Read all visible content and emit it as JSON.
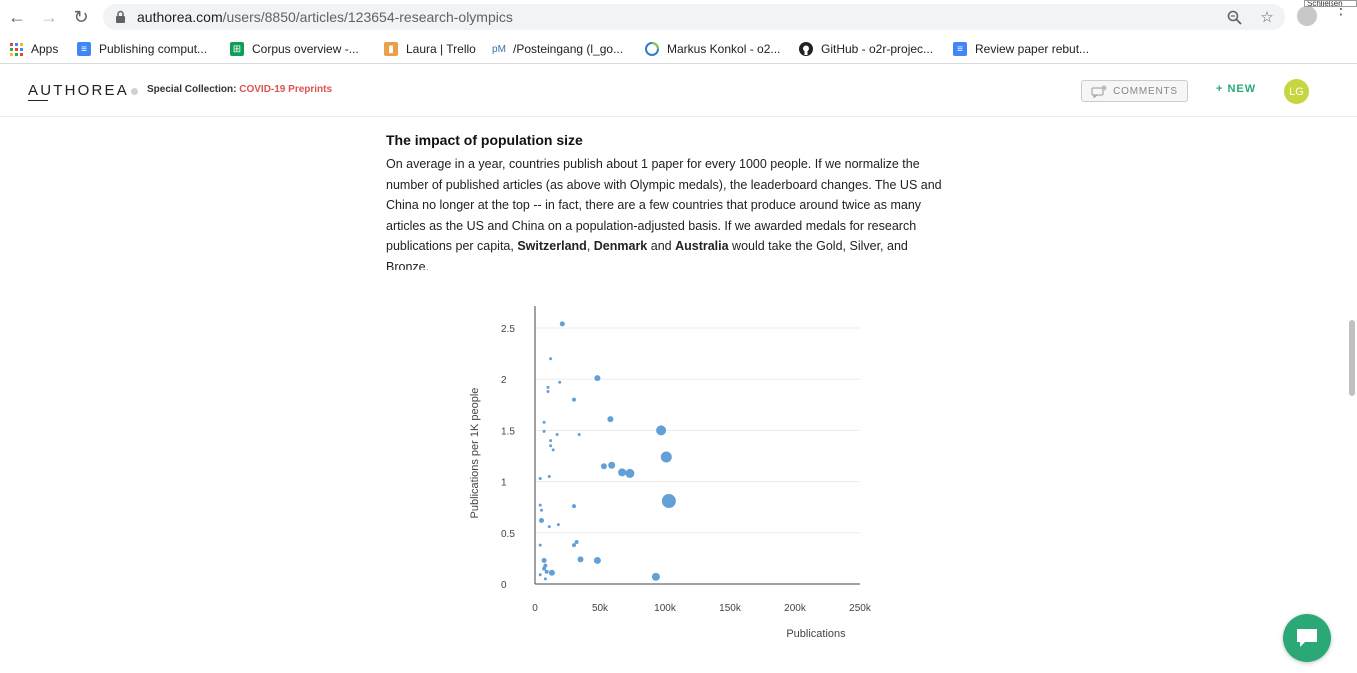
{
  "browser": {
    "url_host": "authorea.com",
    "url_path": "/users/8850/articles/123654-research-olympics",
    "tooltip_fragment": "Schließen",
    "bookmarks": [
      {
        "label": "Apps",
        "icon": "apps-grid-icon"
      },
      {
        "label": "Publishing comput...",
        "icon": "google-docs-icon"
      },
      {
        "label": "Corpus overview -...",
        "icon": "google-sheets-icon"
      },
      {
        "label": "Laura | Trello",
        "icon": "trello-icon"
      },
      {
        "label": "/Posteingang (l_go...",
        "icon": "pm-icon"
      },
      {
        "label": "Markus Konkol - o2...",
        "icon": "orcid-icon"
      },
      {
        "label": "GitHub - o2r-projec...",
        "icon": "github-icon"
      },
      {
        "label": "Review paper rebut...",
        "icon": "google-docs-icon"
      }
    ]
  },
  "header": {
    "logo": "AUTHOREA",
    "collection_prefix": "Special Collection:",
    "collection_name": "COVID-19 Preprints",
    "comments_label": "COMMENTS",
    "new_label": "+ NEW",
    "avatar_initials": "LG"
  },
  "article": {
    "section_title": "The impact of population size",
    "para_part1": "On average in a year, countries publish about 1 paper for every 1000 people. If we normalize the number of published articles (as above with Olympic medals), the leaderboard changes. The US and China no longer at the top -- in fact, there are a few countries that produce around twice as many articles as the US and China on a population-adjusted basis. If we awarded medals for research publications per capita, ",
    "gold": "Switzerland",
    "sep1": ", ",
    "silver": "Denmark",
    "sep2": " and ",
    "bronze": "Australia",
    "para_part2": " would take the Gold, Silver, and Bronze."
  },
  "chart_data": {
    "type": "scatter",
    "title": "",
    "xlabel": "Publications",
    "ylabel": "Publications per 1K people",
    "xlim": [
      0,
      250000
    ],
    "ylim": [
      0,
      2.6
    ],
    "x_ticks": [
      "0",
      "50k",
      "100k",
      "150k",
      "200k",
      "250k"
    ],
    "x_tick_values": [
      0,
      50000,
      100000,
      150000,
      200000,
      250000
    ],
    "y_ticks": [
      "0",
      "0.5",
      "1",
      "1.5",
      "2",
      "2.5"
    ],
    "y_tick_values": [
      0,
      0.5,
      1,
      1.5,
      2,
      2.5
    ],
    "grid": true,
    "point_color": "#5b9bd5",
    "points": [
      {
        "x": 21000,
        "y": 2.54,
        "s": 2.5
      },
      {
        "x": 12000,
        "y": 2.2,
        "s": 1.5
      },
      {
        "x": 48000,
        "y": 2.01,
        "s": 3
      },
      {
        "x": 19000,
        "y": 1.97,
        "s": 1.5
      },
      {
        "x": 10000,
        "y": 1.92,
        "s": 1.5
      },
      {
        "x": 10000,
        "y": 1.88,
        "s": 1.5
      },
      {
        "x": 30000,
        "y": 1.8,
        "s": 2
      },
      {
        "x": 58000,
        "y": 1.61,
        "s": 3
      },
      {
        "x": 7000,
        "y": 1.58,
        "s": 1.5
      },
      {
        "x": 97000,
        "y": 1.5,
        "s": 5
      },
      {
        "x": 7000,
        "y": 1.49,
        "s": 1.5
      },
      {
        "x": 17000,
        "y": 1.46,
        "s": 1.5
      },
      {
        "x": 34000,
        "y": 1.46,
        "s": 1.5
      },
      {
        "x": 12000,
        "y": 1.4,
        "s": 1.5
      },
      {
        "x": 12000,
        "y": 1.35,
        "s": 1.5
      },
      {
        "x": 14000,
        "y": 1.31,
        "s": 1.5
      },
      {
        "x": 101000,
        "y": 1.24,
        "s": 5.5
      },
      {
        "x": 59000,
        "y": 1.16,
        "s": 3.5
      },
      {
        "x": 53000,
        "y": 1.15,
        "s": 3
      },
      {
        "x": 67000,
        "y": 1.09,
        "s": 4
      },
      {
        "x": 73000,
        "y": 1.08,
        "s": 4.5
      },
      {
        "x": 11000,
        "y": 1.05,
        "s": 1.5
      },
      {
        "x": 4000,
        "y": 1.03,
        "s": 1.5
      },
      {
        "x": 103000,
        "y": 0.81,
        "s": 7
      },
      {
        "x": 4000,
        "y": 0.77,
        "s": 1.5
      },
      {
        "x": 30000,
        "y": 0.76,
        "s": 2
      },
      {
        "x": 5000,
        "y": 0.72,
        "s": 1.5
      },
      {
        "x": 5000,
        "y": 0.62,
        "s": 2.5
      },
      {
        "x": 18000,
        "y": 0.58,
        "s": 1.5
      },
      {
        "x": 11000,
        "y": 0.56,
        "s": 1.5
      },
      {
        "x": 32000,
        "y": 0.41,
        "s": 2
      },
      {
        "x": 30000,
        "y": 0.38,
        "s": 2
      },
      {
        "x": 4000,
        "y": 0.38,
        "s": 1.5
      },
      {
        "x": 35000,
        "y": 0.24,
        "s": 3
      },
      {
        "x": 48000,
        "y": 0.23,
        "s": 3.5
      },
      {
        "x": 7000,
        "y": 0.23,
        "s": 2.5
      },
      {
        "x": 8000,
        "y": 0.18,
        "s": 2
      },
      {
        "x": 7000,
        "y": 0.15,
        "s": 2
      },
      {
        "x": 9000,
        "y": 0.12,
        "s": 2
      },
      {
        "x": 13000,
        "y": 0.11,
        "s": 3
      },
      {
        "x": 4000,
        "y": 0.09,
        "s": 1.5
      },
      {
        "x": 93000,
        "y": 0.07,
        "s": 4
      },
      {
        "x": 8000,
        "y": 0.05,
        "s": 1.5
      }
    ]
  }
}
